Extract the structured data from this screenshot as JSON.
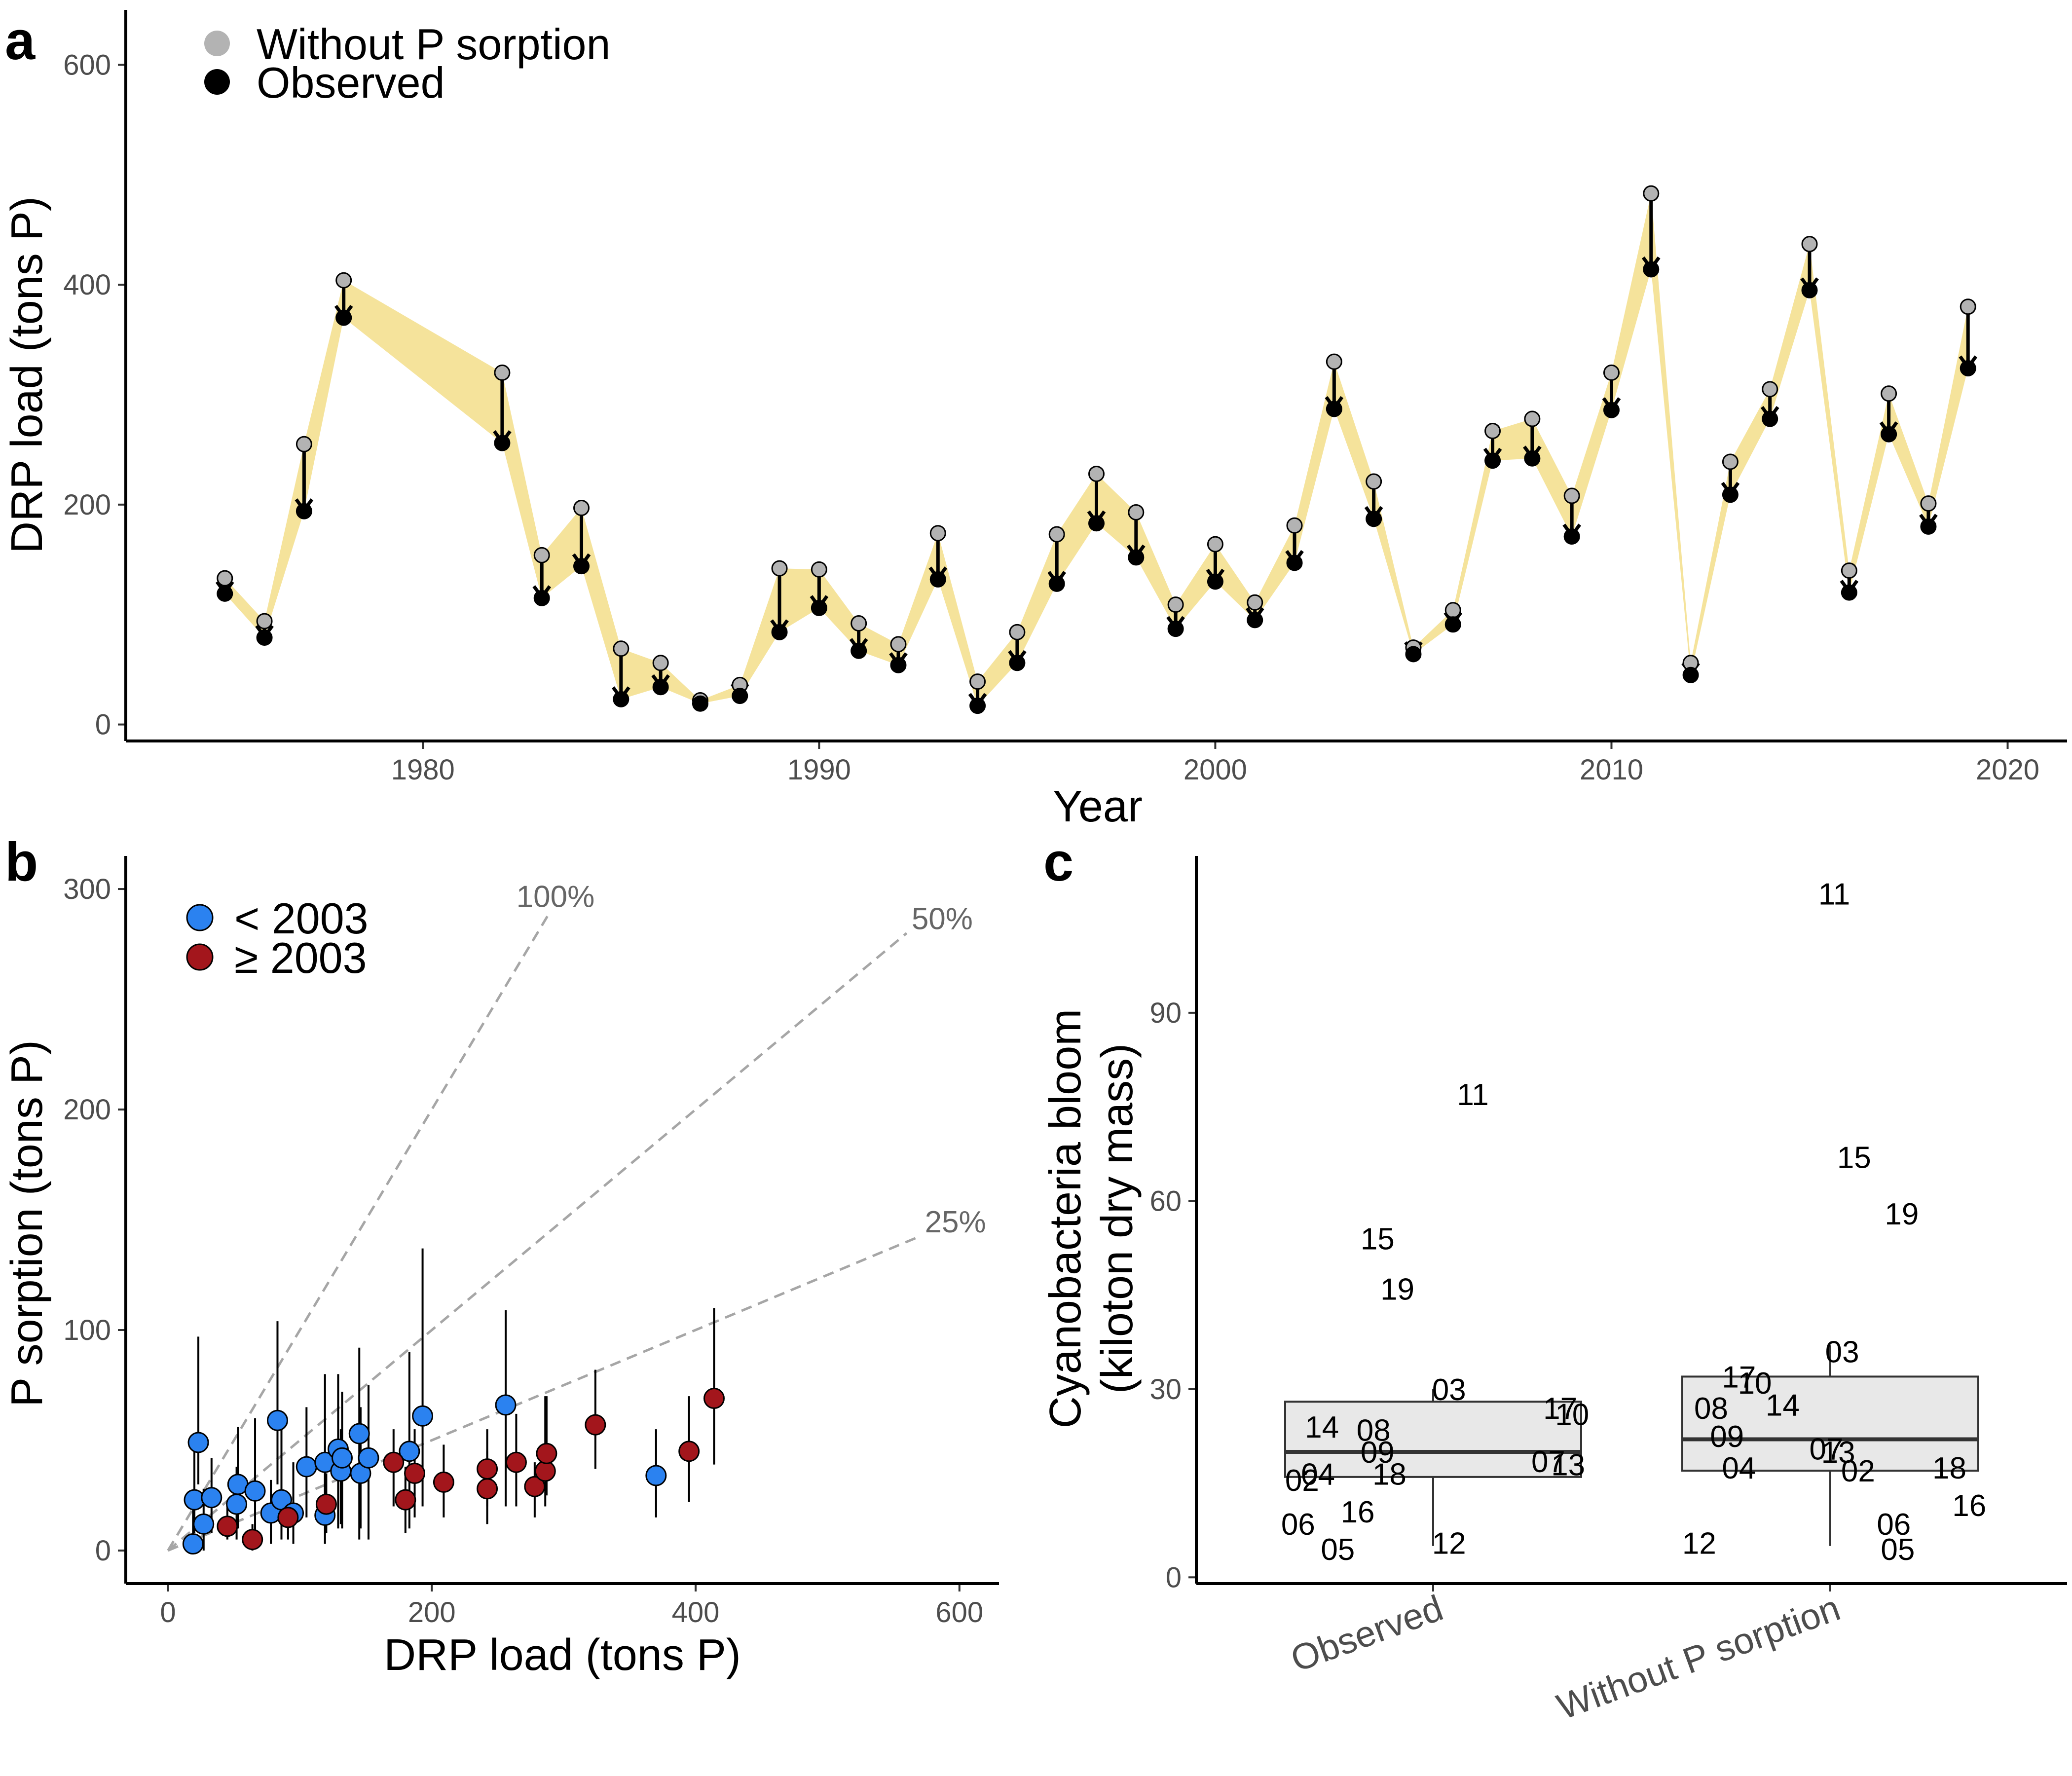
{
  "panels": {
    "a": {
      "label": "a"
    },
    "b": {
      "label": "b"
    },
    "c": {
      "label": "c"
    }
  },
  "chart_data": [
    {
      "panel": "a",
      "type": "line",
      "xlabel": "Year",
      "ylabel": "DRP load (tons P)",
      "xlim": [
        1972.5,
        2021.5
      ],
      "ylim": [
        -15,
        650
      ],
      "xticks": [
        1980,
        1990,
        2000,
        2010,
        2020
      ],
      "yticks": [
        0,
        200,
        400,
        600
      ],
      "legend": {
        "placement": "top-left",
        "entries": [
          "Without P sorption",
          "Observed"
        ]
      },
      "colors": {
        "without": "#b3b3b3",
        "observed": "#000000",
        "band": "#f5e39b"
      },
      "x": [
        1975,
        1976,
        1977,
        1978,
        1982,
        1983,
        1984,
        1985,
        1986,
        1987,
        1988,
        1989,
        1990,
        1991,
        1992,
        1993,
        1994,
        1995,
        1996,
        1997,
        1998,
        1999,
        2000,
        2001,
        2002,
        2003,
        2004,
        2005,
        2006,
        2007,
        2008,
        2009,
        2010,
        2011,
        2012,
        2013,
        2014,
        2015,
        2016,
        2017,
        2018,
        2019
      ],
      "series": [
        {
          "name": "Without P sorption",
          "values": [
            133,
            94,
            255,
            404,
            320,
            154,
            197,
            69,
            56,
            22,
            36,
            142,
            141,
            92,
            73,
            174,
            39,
            84,
            173,
            228,
            193,
            109,
            164,
            111,
            181,
            330,
            221,
            70,
            104,
            267,
            278,
            208,
            320,
            483,
            56,
            239,
            305,
            437,
            140,
            301,
            201,
            380
          ]
        },
        {
          "name": "Observed",
          "values": [
            119,
            79,
            194,
            370,
            256,
            115,
            144,
            23,
            34,
            19,
            26,
            84,
            106,
            67,
            54,
            132,
            17,
            56,
            128,
            183,
            152,
            87,
            130,
            95,
            147,
            287,
            187,
            64,
            91,
            240,
            242,
            171,
            286,
            414,
            45,
            209,
            278,
            395,
            120,
            264,
            180,
            324
          ]
        }
      ]
    },
    {
      "panel": "b",
      "type": "scatter",
      "xlabel": "DRP load (tons P)",
      "ylabel": "P sorption (tons P)",
      "xlim": [
        -32,
        630
      ],
      "ylim": [
        -15,
        315
      ],
      "xticks": [
        0,
        200,
        400,
        600
      ],
      "yticks": [
        0,
        100,
        200,
        300
      ],
      "legend": {
        "placement": "top-left",
        "entries": [
          "< 2003",
          "≥ 2003"
        ]
      },
      "colors": {
        "before": "#2b82f0",
        "after": "#a3161c",
        "guide": "#a6a6a6"
      },
      "guides": [
        {
          "label": "100%",
          "slope": 1.0,
          "x_end": 290
        },
        {
          "label": "50%",
          "slope": 0.5,
          "x_end": 560
        },
        {
          "label": "25%",
          "slope": 0.25,
          "x_end": 570
        }
      ],
      "series": [
        {
          "name": "< 2003",
          "x": [
            19,
            20,
            23,
            27,
            33,
            52,
            53,
            66,
            78,
            83,
            86,
            95,
            105,
            119,
            119,
            129,
            131,
            132,
            145,
            146,
            152,
            183,
            193,
            256,
            370
          ],
          "y": [
            3,
            23,
            49,
            12,
            24,
            21,
            30,
            27,
            17,
            59,
            23,
            17,
            38,
            16,
            40,
            46,
            36,
            42,
            53,
            35,
            42,
            45,
            61,
            66,
            34
          ],
          "err_low": [
            0,
            8,
            30,
            0,
            8,
            5,
            10,
            5,
            3,
            30,
            5,
            3,
            15,
            3,
            15,
            10,
            12,
            10,
            5,
            10,
            5,
            10,
            20,
            20,
            15
          ],
          "err_high": [
            25,
            45,
            97,
            28,
            42,
            38,
            56,
            60,
            32,
            104,
            58,
            40,
            65,
            42,
            80,
            80,
            55,
            72,
            92,
            65,
            75,
            90,
            137,
            109,
            55
          ]
        },
        {
          "name": "≥ 2003",
          "x": [
            45,
            64,
            91,
            120,
            171,
            180,
            187,
            209,
            242,
            242,
            264,
            278,
            286,
            287,
            324,
            395,
            414
          ],
          "y": [
            11,
            5,
            15,
            21,
            40,
            23,
            35,
            31,
            28,
            37,
            40,
            29,
            36,
            44,
            57,
            45,
            69
          ],
          "err_low": [
            5,
            0,
            5,
            8,
            20,
            8,
            15,
            15,
            12,
            20,
            20,
            15,
            20,
            25,
            37,
            22,
            39
          ],
          "err_high": [
            20,
            12,
            25,
            35,
            55,
            38,
            55,
            48,
            45,
            55,
            62,
            40,
            70,
            70,
            82,
            70,
            110
          ]
        }
      ]
    },
    {
      "panel": "c",
      "type": "box",
      "ylabel": "Cyanobacteria bloom (kiloton dry mass)",
      "ylabel_lines": [
        "Cyanobacteria bloom",
        "(kiloton dry mass)"
      ],
      "categories": [
        "Observed",
        "Without P sorption"
      ],
      "ylim": [
        -1,
        115
      ],
      "yticks": [
        0,
        30,
        60,
        90
      ],
      "colors": {
        "box_fill": "#e8e8e8",
        "box_line": "#333333"
      },
      "boxes": [
        {
          "q1": 16,
          "median": 20,
          "q3": 28,
          "whisker_low": 5,
          "whisker_high": 30
        },
        {
          "q1": 17,
          "median": 22,
          "q3": 32,
          "whisker_low": 5,
          "whisker_high": 37
        }
      ],
      "points": [
        [
          {
            "label": "11",
            "y": 77,
            "x": 1.1
          },
          {
            "label": "15",
            "y": 54,
            "x": 0.86
          },
          {
            "label": "19",
            "y": 46,
            "x": 0.91
          },
          {
            "label": "03",
            "y": 30,
            "x": 1.04
          },
          {
            "label": "17",
            "y": 27,
            "x": 1.32
          },
          {
            "label": "10",
            "y": 26,
            "x": 1.35
          },
          {
            "label": "14",
            "y": 24,
            "x": 0.72
          },
          {
            "label": "08",
            "y": 23.5,
            "x": 0.85
          },
          {
            "label": "09",
            "y": 20,
            "x": 0.86
          },
          {
            "label": "07",
            "y": 18.5,
            "x": 1.29
          },
          {
            "label": "13",
            "y": 18,
            "x": 1.34
          },
          {
            "label": "18",
            "y": 16.5,
            "x": 0.89
          },
          {
            "label": "04",
            "y": 16.5,
            "x": 0.71
          },
          {
            "label": "02",
            "y": 15.5,
            "x": 0.67
          },
          {
            "label": "16",
            "y": 10.5,
            "x": 0.81
          },
          {
            "label": "06",
            "y": 8.5,
            "x": 0.66
          },
          {
            "label": "12",
            "y": 5.5,
            "x": 1.04
          },
          {
            "label": "05",
            "y": 4.5,
            "x": 0.76
          }
        ],
        [
          {
            "label": "11",
            "y": 109,
            "x": 2.01
          },
          {
            "label": "15",
            "y": 67,
            "x": 2.06
          },
          {
            "label": "19",
            "y": 58,
            "x": 2.18
          },
          {
            "label": "03",
            "y": 36,
            "x": 2.03
          },
          {
            "label": "17",
            "y": 32,
            "x": 1.77
          },
          {
            "label": "10",
            "y": 31,
            "x": 1.81
          },
          {
            "label": "08",
            "y": 27,
            "x": 1.7
          },
          {
            "label": "14",
            "y": 27.5,
            "x": 1.88
          },
          {
            "label": "09",
            "y": 22.5,
            "x": 1.74
          },
          {
            "label": "07",
            "y": 20.5,
            "x": 1.99
          },
          {
            "label": "13",
            "y": 20,
            "x": 2.02
          },
          {
            "label": "04",
            "y": 17.5,
            "x": 1.77
          },
          {
            "label": "02",
            "y": 17,
            "x": 2.07
          },
          {
            "label": "18",
            "y": 17.5,
            "x": 2.3
          },
          {
            "label": "16",
            "y": 11.5,
            "x": 2.35
          },
          {
            "label": "06",
            "y": 8.5,
            "x": 2.16
          },
          {
            "label": "12",
            "y": 5.5,
            "x": 1.67
          },
          {
            "label": "05",
            "y": 4.5,
            "x": 2.17
          }
        ]
      ]
    }
  ]
}
